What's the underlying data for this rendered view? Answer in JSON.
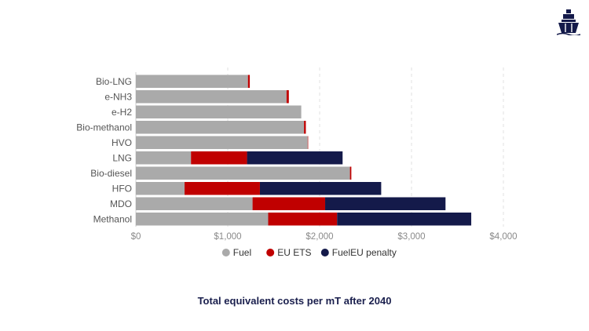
{
  "chart_data": {
    "type": "bar",
    "orientation": "horizontal",
    "stacked": true,
    "title": "Total equivalent costs per mT after 2040",
    "categories": [
      "Bio-LNG",
      "e-NH3",
      "e-H2",
      "Bio-methanol",
      "HVO",
      "LNG",
      "Bio-diesel",
      "HFO",
      "MDO",
      "Methanol"
    ],
    "series": [
      {
        "name": "Fuel",
        "color": "#aaaaaa",
        "values": [
          1220,
          1640,
          1800,
          1830,
          1870,
          600,
          2330,
          530,
          1270,
          1440
        ]
      },
      {
        "name": "EU ETS",
        "color": "#c00000",
        "values": [
          20,
          25,
          0,
          20,
          5,
          610,
          15,
          820,
          790,
          750
        ]
      },
      {
        "name": "FuelEU penalty",
        "color": "#141a4a",
        "values": [
          0,
          0,
          0,
          0,
          0,
          1040,
          0,
          1320,
          1310,
          1460
        ]
      }
    ],
    "x_ticks": [
      "$0",
      "$1,000",
      "$2,000",
      "$3,000",
      "$4,000"
    ],
    "xlim": [
      0,
      4000
    ],
    "grid": true,
    "legend_position": "bottom"
  },
  "logo": {
    "icon": "ship-icon"
  }
}
